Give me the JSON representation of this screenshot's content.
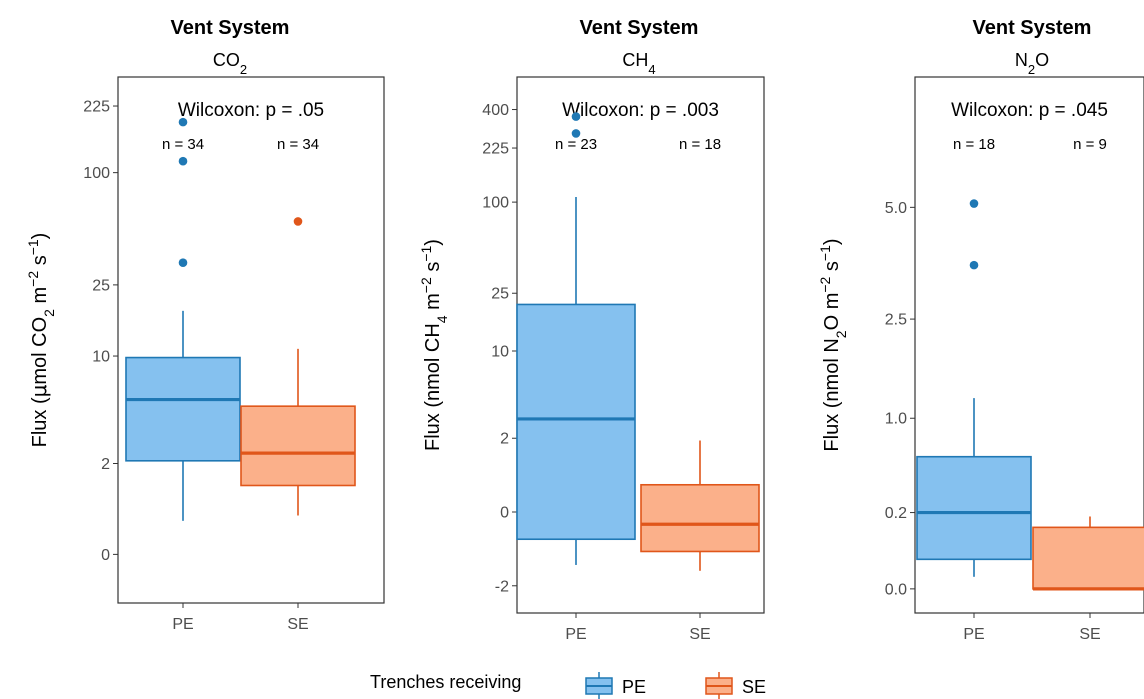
{
  "chart_data": [
    {
      "type": "box",
      "title": "Vent System",
      "subtitle": [
        "CO",
        "2",
        ""
      ],
      "ylabel": [
        "Flux (",
        "μ",
        "mol CO",
        "2",
        " m",
        "−2",
        " s",
        "−1",
        ")"
      ],
      "yscale": "pseudo-log",
      "yticks": [
        "0",
        "2",
        "10",
        "25",
        "100",
        "225"
      ],
      "ylim": [
        -0.8,
        320
      ],
      "categories": [
        "PE",
        "SE"
      ],
      "stat_label": "Wilcoxon: p = .05",
      "n_labels": [
        "n = 34",
        "n = 34"
      ],
      "boxes": [
        {
          "group": "PE",
          "whisker_low": 0.5,
          "q1": 2.1,
          "median": 5.5,
          "q3": 9.8,
          "whisker_high": 18,
          "outliers": [
            33,
            115,
            185
          ]
        },
        {
          "group": "SE",
          "whisker_low": 0.6,
          "q1": 1.3,
          "median": 2.4,
          "q3": 5.0,
          "whisker_high": 11,
          "outliers": [
            55
          ]
        }
      ]
    },
    {
      "type": "box",
      "title": "Vent System",
      "subtitle": [
        "CH",
        "4",
        ""
      ],
      "ylabel": [
        "Flux (",
        "",
        "nmol CH",
        "4",
        " m",
        "−2",
        " s",
        "−1",
        ")"
      ],
      "yscale": "pseudo-log",
      "yticks": [
        "-2",
        "0",
        "2",
        "10",
        "25",
        "100",
        "225",
        "400"
      ],
      "ylim": [
        -3.5,
        650
      ],
      "categories": [
        "PE",
        "SE"
      ],
      "stat_label": "Wilcoxon: p = .003",
      "n_labels": [
        "n = 23",
        "n = 18"
      ],
      "boxes": [
        {
          "group": "PE",
          "whisker_low": -1.2,
          "q1": -0.5,
          "median": 3,
          "q3": 21,
          "whisker_high": 108,
          "outliers": [
            280,
            360
          ]
        },
        {
          "group": "SE",
          "whisker_low": -1.4,
          "q1": -0.8,
          "median": -0.2,
          "q3": 0.5,
          "whisker_high": 1.9,
          "outliers": []
        }
      ]
    },
    {
      "type": "box",
      "title": "Vent System",
      "subtitle": [
        "N",
        "2",
        "O"
      ],
      "ylabel": [
        "Flux (",
        "",
        "nmol N",
        "2",
        "O m",
        "−2",
        " s",
        "−1",
        ")"
      ],
      "yscale": "sqrt",
      "yticks": [
        "0.0",
        "0.2",
        "1.0",
        "2.5",
        "5.0"
      ],
      "ylim": [
        -0.02,
        9.0
      ],
      "categories": [
        "PE",
        "SE"
      ],
      "stat_label": "Wilcoxon: p = .045",
      "n_labels": [
        "n = 18",
        "n = 9"
      ],
      "boxes": [
        {
          "group": "PE",
          "whisker_low": 0.005,
          "q1": 0.03,
          "median": 0.2,
          "q3": 0.6,
          "whisker_high": 1.25,
          "outliers": [
            3.6,
            5.1
          ]
        },
        {
          "group": "SE",
          "whisker_low": 0.0,
          "q1": 0.0,
          "median": 0.0,
          "q3": 0.13,
          "whisker_high": 0.18,
          "outliers": []
        }
      ]
    }
  ],
  "legend": {
    "title": "Trenches receiving",
    "items": [
      {
        "label": "PE",
        "fill": "#85c1ef",
        "stroke": "#1f78b4"
      },
      {
        "label": "SE",
        "fill": "#fbb08a",
        "stroke": "#e0561a"
      }
    ]
  },
  "colors": {
    "PE_fill": "#85c1ef",
    "PE_line": "#1f78b4",
    "PE_point": "#1f78b4",
    "SE_fill": "#fbb08a",
    "SE_line": "#e0561a",
    "SE_point": "#e0561a"
  }
}
